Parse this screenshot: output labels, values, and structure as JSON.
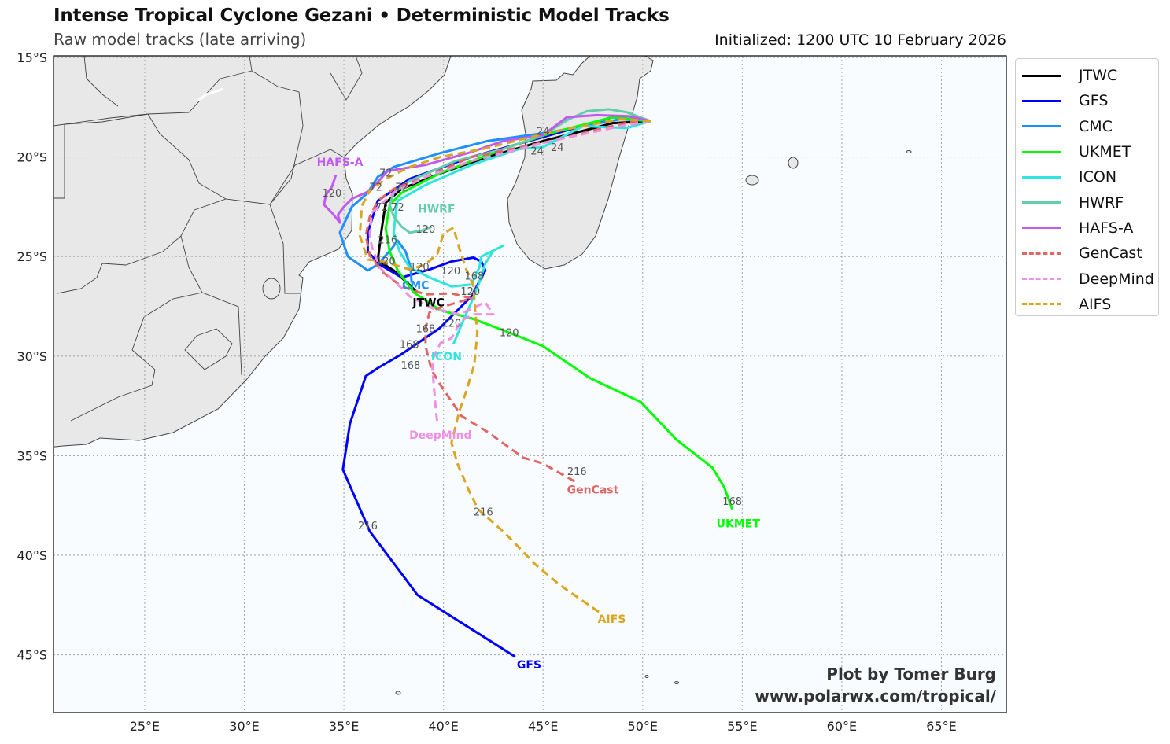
{
  "header": {
    "title": "Intense Tropical Cyclone Gezani • Deterministic Model Tracks",
    "subtitle": "Raw model tracks (late arriving)",
    "initialized": "Initialized: 1200 UTC 10 February 2026"
  },
  "credit": {
    "line1": "Plot by Tomer Burg",
    "line2": "www.polarwx.com/tropical/"
  },
  "map": {
    "extent": {
      "lon": [
        20.42,
        68.26
      ],
      "lat": [
        -14.92,
        -47.9
      ]
    },
    "lon_ticks": [
      {
        "v": 25,
        "label": "25°E"
      },
      {
        "v": 30,
        "label": "30°E"
      },
      {
        "v": 35,
        "label": "35°E"
      },
      {
        "v": 40,
        "label": "40°E"
      },
      {
        "v": 45,
        "label": "45°E"
      },
      {
        "v": 50,
        "label": "50°E"
      },
      {
        "v": 55,
        "label": "55°E"
      },
      {
        "v": 60,
        "label": "60°E"
      },
      {
        "v": 65,
        "label": "65°E"
      }
    ],
    "lat_ticks": [
      {
        "v": -15,
        "label": "15°S"
      },
      {
        "v": -20,
        "label": "20°S"
      },
      {
        "v": -25,
        "label": "25°S"
      },
      {
        "v": -30,
        "label": "30°S"
      },
      {
        "v": -35,
        "label": "35°S"
      },
      {
        "v": -40,
        "label": "40°S"
      },
      {
        "v": -45,
        "label": "45°S"
      }
    ],
    "colors": {
      "ocean": "#f8fcff",
      "land": "#e8e8e8",
      "coast": "#444444",
      "grid": "#aaaaaa"
    }
  },
  "tracks": [
    {
      "name": "JTWC",
      "color": "#000000",
      "dashed": false,
      "points": [
        [
          50.4,
          -18.2
        ],
        [
          48.5,
          -18.3
        ],
        [
          45.0,
          -19.2
        ],
        [
          42.2,
          -20.0
        ],
        [
          39.9,
          -20.8
        ],
        [
          37.9,
          -21.6
        ],
        [
          37.1,
          -22.3
        ],
        [
          36.9,
          -23.6
        ],
        [
          36.7,
          -25.2
        ],
        [
          37.5,
          -25.7
        ],
        [
          38.7,
          -26.8
        ]
      ],
      "label": {
        "text": "JTWC",
        "at": [
          39.25,
          -27.3
        ]
      }
    },
    {
      "name": "GFS",
      "color": "#0000ff",
      "dashed": false,
      "points": [
        [
          50.4,
          -18.2
        ],
        [
          48.5,
          -18.0
        ],
        [
          45.0,
          -19.0
        ],
        [
          41.4,
          -20.0
        ],
        [
          38.3,
          -21.1
        ],
        [
          36.7,
          -22.2
        ],
        [
          36.2,
          -23.8
        ],
        [
          36.2,
          -24.75
        ],
        [
          36.8,
          -25.4
        ],
        [
          37.9,
          -26.05
        ],
        [
          39.3,
          -25.65
        ],
        [
          40.4,
          -25.25
        ],
        [
          41.5,
          -25.05
        ],
        [
          41.9,
          -25.25
        ],
        [
          42.1,
          -25.7
        ],
        [
          41.4,
          -27.0
        ],
        [
          39.8,
          -28.6
        ],
        [
          37.9,
          -29.9
        ],
        [
          36.7,
          -30.6
        ],
        [
          36.1,
          -31.0
        ],
        [
          35.3,
          -33.4
        ],
        [
          34.95,
          -35.7
        ],
        [
          36.3,
          -38.8
        ],
        [
          38.7,
          -42.0
        ],
        [
          43.6,
          -45.1
        ]
      ],
      "label": {
        "text": "GFS",
        "at": [
          44.3,
          -45.5
        ]
      }
    },
    {
      "name": "CMC",
      "color": "#1e90ff",
      "dashed": false,
      "points": [
        [
          50.4,
          -18.2
        ],
        [
          48.9,
          -18.1
        ],
        [
          45.4,
          -18.75
        ],
        [
          42.2,
          -19.2
        ],
        [
          39.85,
          -19.8
        ],
        [
          37.5,
          -20.5
        ],
        [
          36.7,
          -21.0
        ],
        [
          36.2,
          -21.8
        ],
        [
          35.4,
          -22.5
        ],
        [
          34.8,
          -23.8
        ],
        [
          35.2,
          -25.0
        ],
        [
          36.2,
          -25.7
        ],
        [
          36.7,
          -25.4
        ],
        [
          37.4,
          -24.6
        ],
        [
          37.7,
          -24.2
        ],
        [
          38.1,
          -24.75
        ],
        [
          38.35,
          -25.55
        ],
        [
          38.4,
          -26.3
        ]
      ],
      "label": {
        "text": "CMC",
        "at": [
          38.6,
          -27.0
        ]
      }
    },
    {
      "name": "UKMET",
      "color": "#00ff00",
      "dashed": false,
      "points": [
        [
          50.4,
          -18.2
        ],
        [
          48.5,
          -18.0
        ],
        [
          45.4,
          -18.8
        ],
        [
          43.0,
          -19.6
        ],
        [
          39.85,
          -20.8
        ],
        [
          37.9,
          -21.8
        ],
        [
          37.3,
          -22.4
        ],
        [
          37.1,
          -23.6
        ],
        [
          37.3,
          -24.75
        ],
        [
          37.7,
          -25.7
        ],
        [
          38.5,
          -26.8
        ],
        [
          39.85,
          -27.7
        ],
        [
          41.4,
          -28.1
        ],
        [
          43.0,
          -28.7
        ],
        [
          45.0,
          -29.5
        ],
        [
          47.35,
          -31.1
        ],
        [
          49.9,
          -32.3
        ],
        [
          51.7,
          -34.2
        ],
        [
          53.5,
          -35.6
        ],
        [
          54.1,
          -36.6
        ],
        [
          54.5,
          -37.7
        ]
      ],
      "label": {
        "text": "UKMET",
        "at": [
          54.8,
          -38.4
        ]
      }
    },
    {
      "name": "ICON",
      "color": "#2ee6de",
      "dashed": false,
      "points": [
        [
          50.4,
          -18.2
        ],
        [
          49.2,
          -18.55
        ],
        [
          47.0,
          -18.45
        ],
        [
          45.0,
          -19.5
        ],
        [
          43.8,
          -19.6
        ],
        [
          41.4,
          -20.4
        ],
        [
          39.1,
          -21.4
        ],
        [
          37.7,
          -22.2
        ],
        [
          37.6,
          -22.8
        ],
        [
          37.5,
          -23.8
        ],
        [
          37.8,
          -24.75
        ],
        [
          38.3,
          -25.55
        ],
        [
          39.3,
          -26.05
        ],
        [
          40.4,
          -26.5
        ],
        [
          41.4,
          -26.4
        ],
        [
          41.8,
          -25.55
        ],
        [
          41.9,
          -25.0
        ],
        [
          43.0,
          -24.45
        ],
        [
          42.5,
          -24.7
        ],
        [
          42.1,
          -25.35
        ],
        [
          41.8,
          -26.3
        ],
        [
          41.4,
          -27.3
        ],
        [
          41.0,
          -28.2
        ],
        [
          40.5,
          -29.4
        ]
      ],
      "label": {
        "text": "ICON",
        "at": [
          40.15,
          -30.0
        ]
      }
    },
    {
      "name": "HWRF",
      "color": "#66cdaa",
      "dashed": false,
      "points": [
        [
          50.4,
          -18.2
        ],
        [
          49.2,
          -17.75
        ],
        [
          48.3,
          -17.6
        ],
        [
          47.2,
          -17.7
        ],
        [
          46.3,
          -18.1
        ],
        [
          45.0,
          -18.9
        ],
        [
          43.0,
          -19.6
        ],
        [
          40.6,
          -20.2
        ],
        [
          38.3,
          -21.2
        ],
        [
          37.5,
          -21.8
        ],
        [
          37.3,
          -22.4
        ],
        [
          37.5,
          -23.0
        ],
        [
          37.9,
          -23.5
        ],
        [
          38.3,
          -23.8
        ],
        [
          38.9,
          -23.7
        ],
        [
          39.4,
          -23.5
        ]
      ],
      "label": {
        "text": "HWRF",
        "at": [
          39.65,
          -22.6
        ]
      }
    },
    {
      "name": "HAFS-A",
      "color": "#c05af0",
      "dashed": false,
      "points": [
        [
          50.4,
          -18.2
        ],
        [
          49.3,
          -17.95
        ],
        [
          47.75,
          -17.9
        ],
        [
          46.2,
          -18.0
        ],
        [
          45.0,
          -18.9
        ],
        [
          43.0,
          -19.2
        ],
        [
          41.4,
          -19.75
        ],
        [
          39.1,
          -20.4
        ],
        [
          37.2,
          -20.7
        ],
        [
          36.3,
          -21.7
        ],
        [
          35.4,
          -22.1
        ],
        [
          35.0,
          -22.5
        ],
        [
          34.7,
          -22.9
        ],
        [
          34.8,
          -23.3
        ],
        [
          34.4,
          -22.8
        ],
        [
          34.0,
          -22.4
        ],
        [
          34.1,
          -21.9
        ],
        [
          34.4,
          -21.5
        ],
        [
          34.6,
          -20.9
        ]
      ],
      "label": {
        "text": "HAFS-A",
        "at": [
          34.8,
          -20.25
        ]
      }
    },
    {
      "name": "GenCast",
      "color": "#e06666",
      "dashed": true,
      "points": [
        [
          50.4,
          -18.2
        ],
        [
          49.3,
          -18.25
        ],
        [
          45.4,
          -19.2
        ],
        [
          41.4,
          -20.0
        ],
        [
          39.1,
          -21.0
        ],
        [
          37.5,
          -21.6
        ],
        [
          36.7,
          -22.2
        ],
        [
          36.3,
          -23.0
        ],
        [
          36.1,
          -23.95
        ],
        [
          36.3,
          -24.95
        ],
        [
          36.9,
          -25.75
        ],
        [
          37.9,
          -26.5
        ],
        [
          39.1,
          -26.9
        ],
        [
          40.4,
          -26.85
        ],
        [
          41.4,
          -27.1
        ],
        [
          39.7,
          -27.6
        ],
        [
          39.3,
          -27.8
        ],
        [
          39.1,
          -28.6
        ],
        [
          39.1,
          -29.5
        ],
        [
          39.4,
          -30.7
        ],
        [
          39.85,
          -31.45
        ],
        [
          40.9,
          -33.0
        ],
        [
          42.2,
          -33.8
        ],
        [
          44.0,
          -35.1
        ],
        [
          45.0,
          -35.4
        ],
        [
          46.6,
          -36.3
        ]
      ],
      "label": {
        "text": "GenCast",
        "at": [
          47.5,
          -36.7
        ]
      }
    },
    {
      "name": "DeepMind",
      "color": "#ee90e4",
      "dashed": true,
      "points": [
        [
          50.4,
          -18.2
        ],
        [
          48.9,
          -18.45
        ],
        [
          45.4,
          -19.2
        ],
        [
          41.4,
          -20.2
        ],
        [
          39.1,
          -21.0
        ],
        [
          37.5,
          -21.8
        ],
        [
          36.4,
          -22.8
        ],
        [
          36.3,
          -23.85
        ],
        [
          36.4,
          -24.5
        ],
        [
          36.8,
          -25.55
        ],
        [
          37.5,
          -26.2
        ],
        [
          38.3,
          -27.0
        ],
        [
          39.45,
          -27.6
        ],
        [
          40.8,
          -27.9
        ],
        [
          42.1,
          -27.3
        ],
        [
          42.5,
          -27.9
        ],
        [
          41.55,
          -27.9
        ],
        [
          40.9,
          -28.2
        ],
        [
          40.4,
          -29.1
        ],
        [
          39.85,
          -29.35
        ],
        [
          39.45,
          -30.15
        ],
        [
          39.45,
          -30.7
        ],
        [
          39.6,
          -32.5
        ],
        [
          39.7,
          -33.45
        ]
      ],
      "label": {
        "text": "DeepMind",
        "at": [
          39.85,
          -33.95
        ]
      }
    },
    {
      "name": "AIFS",
      "color": "#daa520",
      "dashed": true,
      "points": [
        [
          50.4,
          -18.2
        ],
        [
          48.9,
          -18.1
        ],
        [
          45.4,
          -18.75
        ],
        [
          42.2,
          -19.55
        ],
        [
          39.85,
          -20.0
        ],
        [
          38.3,
          -20.5
        ],
        [
          37.1,
          -21.1
        ],
        [
          36.3,
          -21.7
        ],
        [
          35.9,
          -22.45
        ],
        [
          35.8,
          -23.95
        ],
        [
          36.2,
          -25.15
        ],
        [
          37.0,
          -25.25
        ],
        [
          38.3,
          -25.65
        ],
        [
          39.1,
          -25.4
        ],
        [
          39.7,
          -24.85
        ],
        [
          40.0,
          -23.85
        ],
        [
          40.5,
          -23.55
        ],
        [
          40.8,
          -24.6
        ],
        [
          41.15,
          -25.65
        ],
        [
          41.5,
          -26.45
        ],
        [
          41.6,
          -27.8
        ],
        [
          41.7,
          -28.8
        ],
        [
          41.55,
          -30.4
        ],
        [
          41.15,
          -31.75
        ],
        [
          40.8,
          -32.75
        ],
        [
          40.4,
          -34.35
        ],
        [
          40.7,
          -35.4
        ],
        [
          41.3,
          -36.8
        ],
        [
          41.75,
          -37.7
        ],
        [
          43.1,
          -38.9
        ],
        [
          44.6,
          -40.45
        ],
        [
          45.85,
          -41.5
        ],
        [
          47.8,
          -42.85
        ]
      ],
      "label": {
        "text": "AIFS",
        "at": [
          48.45,
          -43.2
        ]
      }
    }
  ],
  "hour_labels": [
    {
      "text": "24",
      "at": [
        45.0,
        -18.7
      ]
    },
    {
      "text": "24",
      "at": [
        44.7,
        -19.15
      ]
    },
    {
      "text": "24",
      "at": [
        45.25,
        -19.5
      ]
    },
    {
      "text": "72",
      "at": [
        36.6,
        -21.5
      ]
    },
    {
      "text": "72",
      "at": [
        37.9,
        -21.5
      ]
    },
    {
      "text": "72",
      "at": [
        36.9,
        -22.5
      ]
    },
    {
      "text": "72",
      "at": [
        37.7,
        -22.5
      ]
    },
    {
      "text": "72",
      "at": [
        37.1,
        -21.85
      ]
    },
    {
      "text": "120",
      "at": [
        34.4,
        -21.8
      ]
    },
    {
      "text": "120",
      "at": [
        39.1,
        -23.6
      ]
    },
    {
      "text": "120",
      "at": [
        37.1,
        -25.2
      ]
    },
    {
      "text": "120",
      "at": [
        38.8,
        -25.5
      ]
    },
    {
      "text": "120",
      "at": [
        39.7,
        -25.7
      ]
    },
    {
      "text": "120",
      "at": [
        41.35,
        -26.2
      ]
    },
    {
      "text": "120",
      "at": [
        40.4,
        -27.8
      ]
    },
    {
      "text": "120",
      "at": [
        43.3,
        -28.8
      ]
    },
    {
      "text": "168",
      "at": [
        41.55,
        -26.5
      ]
    },
    {
      "text": "168",
      "at": [
        39.1,
        -28.6
      ]
    },
    {
      "text": "168",
      "at": [
        39.6,
        -29.4
      ]
    },
    {
      "text": "168",
      "at": [
        38.35,
        -29.9
      ]
    },
    {
      "text": "168",
      "at": [
        54.5,
        -37.8
      ]
    },
    {
      "text": "216",
      "at": [
        37.2,
        -24.15
      ]
    },
    {
      "text": "216",
      "at": [
        46.7,
        -36.3
      ]
    },
    {
      "text": "216",
      "at": [
        42.0,
        -37.8
      ]
    },
    {
      "text": "216",
      "at": [
        36.2,
        -38.5
      ]
    }
  ]
}
